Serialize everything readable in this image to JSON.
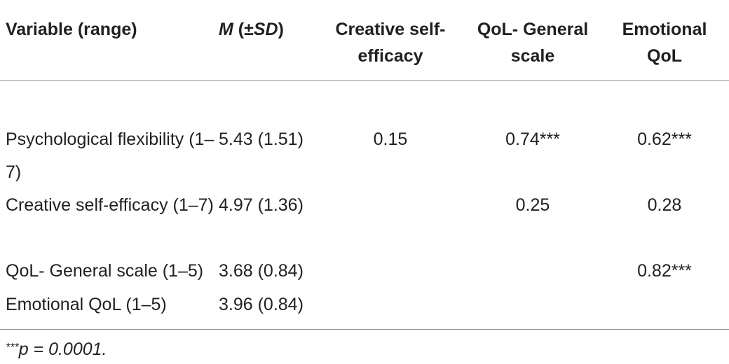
{
  "table": {
    "header": [
      "Variable (range)",
      [
        "M",
        " (±",
        "SD",
        ")"
      ],
      "Creative self-efficacy",
      "QoL- General scale",
      "Emotional QoL"
    ],
    "rows": [
      [
        "Psychological flexibility (1–7)",
        "5.43 (1.51)",
        "0.15",
        "0.74***",
        "0.62***"
      ],
      [
        "Creative self-efficacy (1–7)",
        "4.97 (1.36)",
        null,
        "0.25",
        "0.28"
      ],
      [
        "QoL- General scale (1–5)",
        "3.68 (0.84)",
        null,
        null,
        "0.82***"
      ],
      [
        "Emotional QoL (1–5)",
        "3.96 (0.84)",
        null,
        null,
        null
      ]
    ],
    "footnote": {
      "mark": "***",
      "text": "p = 0.0001."
    }
  }
}
